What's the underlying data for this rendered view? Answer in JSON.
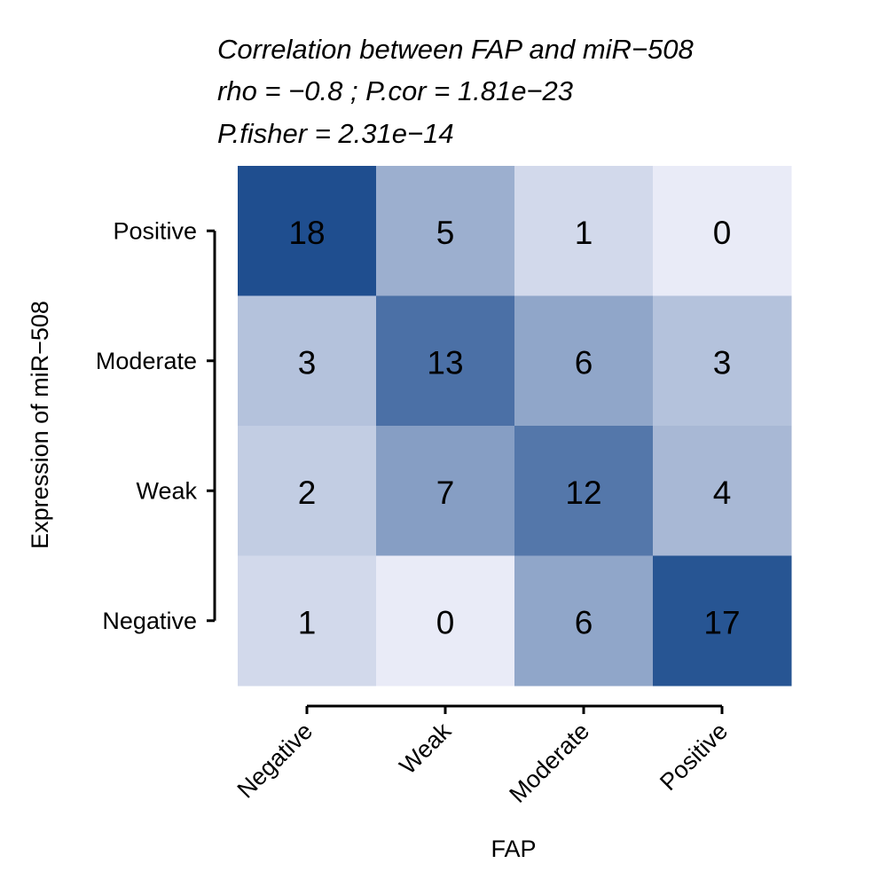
{
  "chart_data": {
    "type": "heatmap",
    "title_lines": [
      "Correlation between FAP and miR−508",
      "rho =  −0.8 ;  P.cor =  1.81e−23",
      "P.fisher =  2.31e−14"
    ],
    "xlabel": "FAP",
    "ylabel": "Expression of miR−508",
    "x_categories": [
      "Negative",
      "Weak",
      "Moderate",
      "Positive"
    ],
    "y_categories": [
      "Positive",
      "Moderate",
      "Weak",
      "Negative"
    ],
    "values": [
      [
        18,
        5,
        1,
        0
      ],
      [
        3,
        13,
        6,
        3
      ],
      [
        2,
        7,
        12,
        4
      ],
      [
        1,
        0,
        6,
        17
      ]
    ],
    "color_scale": {
      "low": "#e9ebf7",
      "high": "#1f4e8f"
    },
    "legend": "none",
    "grid": false
  }
}
